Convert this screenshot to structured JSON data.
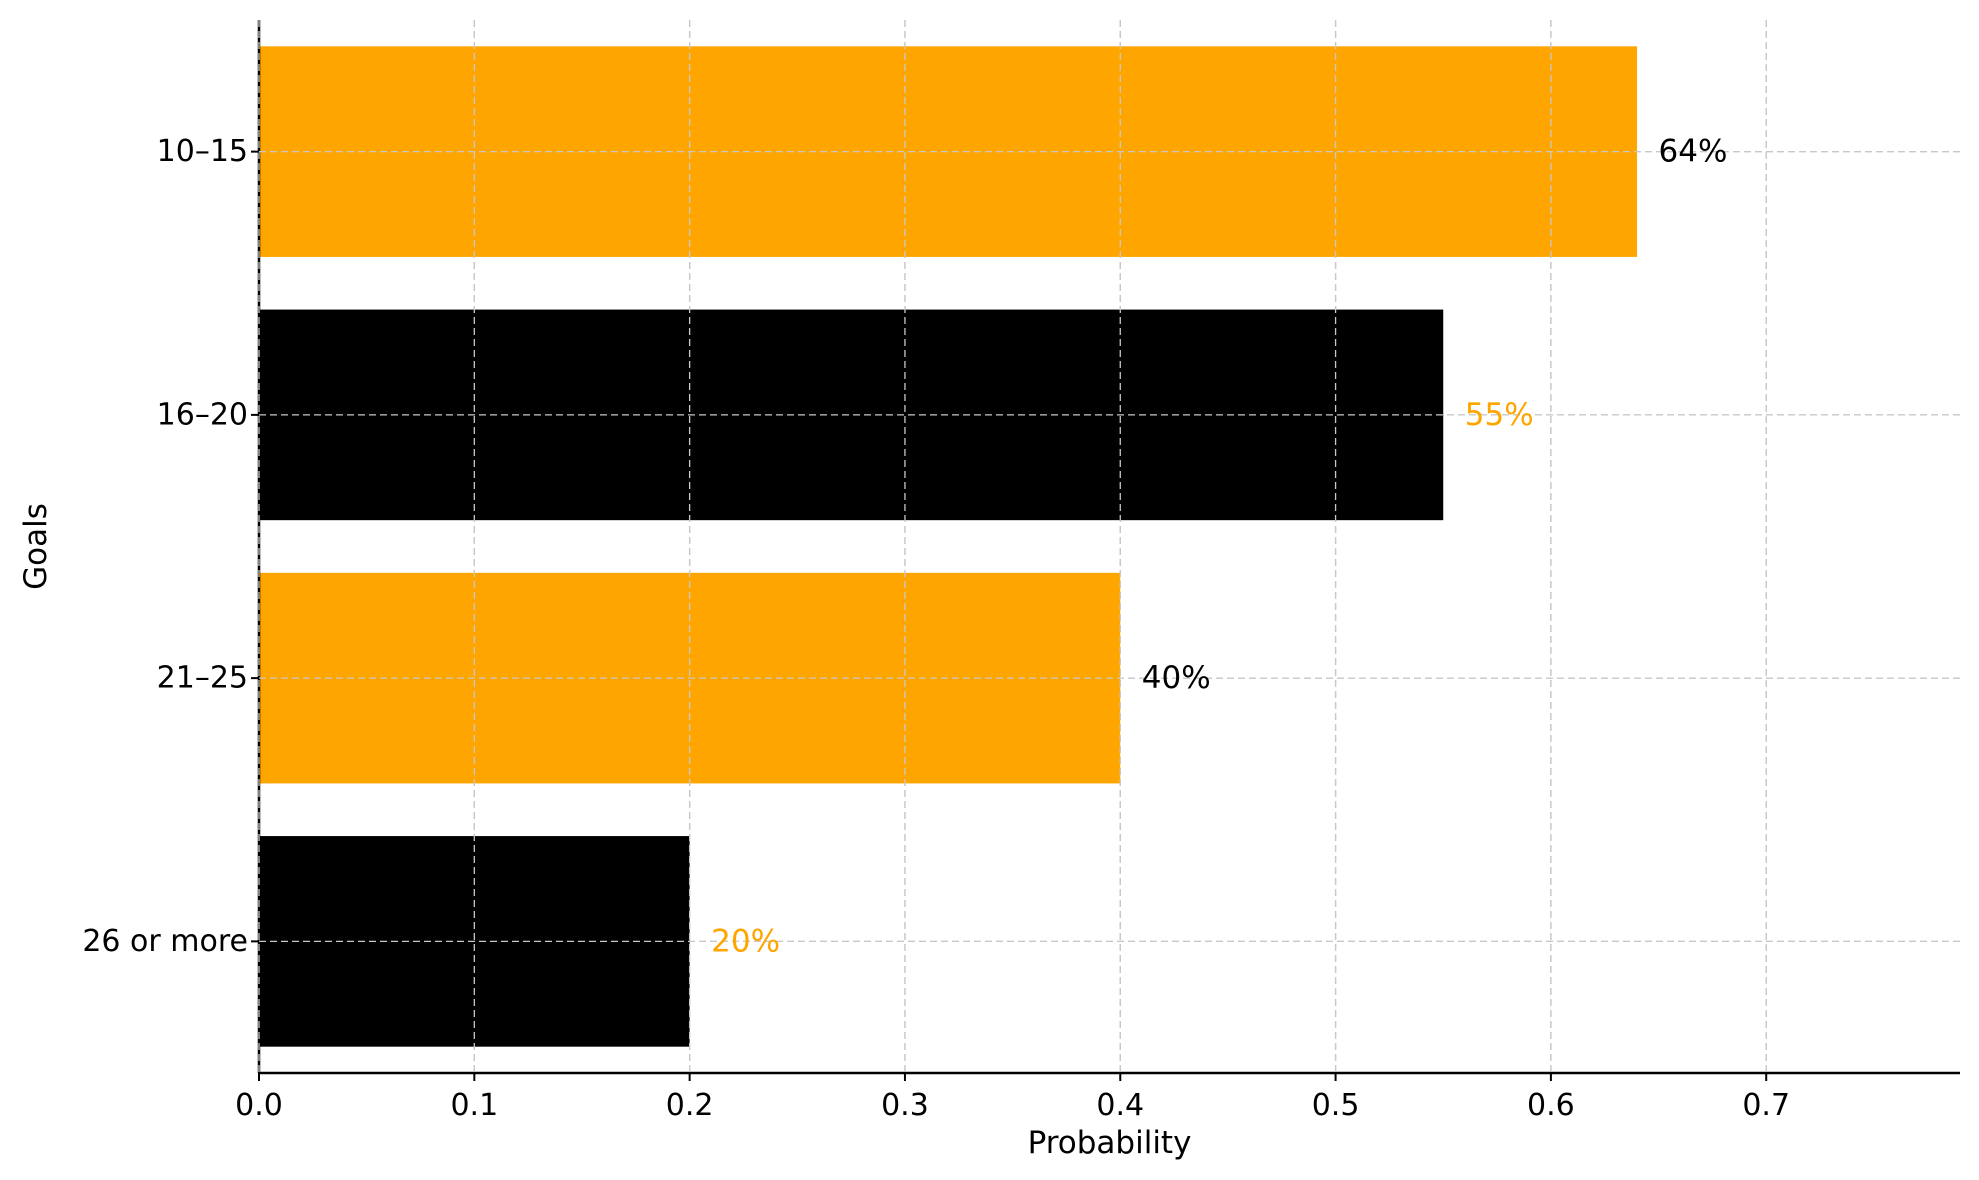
{
  "chart_data": {
    "type": "bar",
    "orientation": "horizontal",
    "categories": [
      "10–15",
      "16–20",
      "21–25",
      "26 or more"
    ],
    "values": [
      0.64,
      0.55,
      0.4,
      0.2
    ],
    "data_labels": [
      "64%",
      "55%",
      "40%",
      "20%"
    ],
    "bar_colors": [
      "#FFA500",
      "#000000",
      "#FFA500",
      "#000000"
    ],
    "label_colors": [
      "#000000",
      "#FFA500",
      "#000000",
      "#FFA500"
    ],
    "title": "",
    "xlabel": "Probability",
    "ylabel": "Goals",
    "xlim": [
      0,
      0.79
    ],
    "xticks": [
      0.0,
      0.1,
      0.2,
      0.3,
      0.4,
      0.5,
      0.6,
      0.7
    ],
    "xtick_labels": [
      "0.0",
      "0.1",
      "0.2",
      "0.3",
      "0.4",
      "0.5",
      "0.6",
      "0.7"
    ],
    "grid": true,
    "legend": "none"
  }
}
